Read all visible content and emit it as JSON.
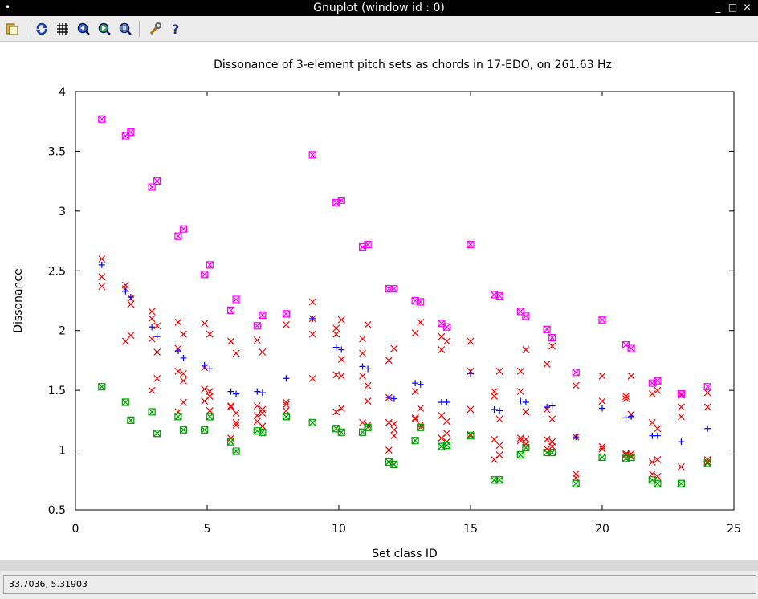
{
  "window": {
    "title": "Gnuplot (window id : 0)",
    "controls": [
      "minimize-icon",
      "maximize-icon",
      "close-icon"
    ]
  },
  "toolbar": {
    "buttons": [
      "copy-to-clipboard-icon",
      "replot-icon",
      "grid-icon",
      "zoom-previous-icon",
      "zoom-next-icon",
      "unzoom-icon",
      "settings-wrench-icon",
      "help-icon"
    ]
  },
  "status": {
    "coords": "33.7036,  5.31903"
  },
  "chart_data": {
    "type": "scatter",
    "title": "Dissonance of 3-element pitch sets as chords in 17-EDO, on 261.63 Hz",
    "xlabel": "Set class ID",
    "ylabel": "Dissonance",
    "xlim": [
      0,
      25
    ],
    "ylim": [
      0.5,
      4
    ],
    "xticks": [
      0,
      5,
      10,
      15,
      20,
      25
    ],
    "yticks": [
      0.5,
      1,
      1.5,
      2,
      2.5,
      3,
      3.5,
      4
    ],
    "grid": false,
    "legend": "none",
    "colors": {
      "red": "#ff0000",
      "blue": "#0000ff",
      "green": "#00a000",
      "magenta": "#ff00ff"
    },
    "series": [
      {
        "marker": "x",
        "color": "#ff0000",
        "points": [
          [
            1,
            2.6
          ],
          [
            1,
            2.45
          ],
          [
            1,
            2.37
          ],
          [
            1.9,
            2.38
          ],
          [
            1.9,
            2.35
          ],
          [
            1.9,
            1.91
          ],
          [
            2.1,
            2.27
          ],
          [
            2.1,
            2.22
          ],
          [
            2.1,
            1.96
          ],
          [
            2.9,
            2.16
          ],
          [
            2.9,
            2.1
          ],
          [
            2.9,
            1.93
          ],
          [
            2.9,
            1.5
          ],
          [
            3.1,
            2.04
          ],
          [
            3.1,
            1.82
          ],
          [
            3.1,
            1.6
          ],
          [
            3.9,
            2.07
          ],
          [
            3.9,
            1.85
          ],
          [
            3.9,
            1.66
          ],
          [
            3.9,
            1.32
          ],
          [
            4.1,
            1.97
          ],
          [
            4.1,
            1.64
          ],
          [
            4.1,
            1.58
          ],
          [
            4.1,
            1.4
          ],
          [
            4.9,
            2.06
          ],
          [
            4.9,
            1.69
          ],
          [
            4.9,
            1.51
          ],
          [
            4.9,
            1.41
          ],
          [
            5.1,
            1.97
          ],
          [
            5.1,
            1.49
          ],
          [
            5.1,
            1.45
          ],
          [
            5.1,
            1.33
          ],
          [
            5.9,
            1.91
          ],
          [
            5.9,
            1.37
          ],
          [
            5.9,
            1.36
          ],
          [
            5.9,
            1.1
          ],
          [
            6.1,
            1.81
          ],
          [
            6.1,
            1.31
          ],
          [
            6.1,
            1.23
          ],
          [
            6.1,
            1.21
          ],
          [
            6.9,
            1.92
          ],
          [
            6.9,
            1.37
          ],
          [
            6.9,
            1.29
          ],
          [
            6.9,
            1.24
          ],
          [
            7.1,
            1.82
          ],
          [
            7.1,
            1.34
          ],
          [
            7.1,
            1.31
          ],
          [
            7.1,
            1.2
          ],
          [
            8,
            2.05
          ],
          [
            8,
            1.4
          ],
          [
            8,
            1.38
          ],
          [
            8,
            1.33
          ],
          [
            9,
            2.24
          ],
          [
            9,
            1.97
          ],
          [
            9,
            1.6
          ],
          [
            9,
            2.1
          ],
          [
            9.9,
            2.02
          ],
          [
            9.9,
            1.97
          ],
          [
            9.9,
            1.63
          ],
          [
            9.9,
            1.32
          ],
          [
            10.1,
            2.09
          ],
          [
            10.1,
            1.76
          ],
          [
            10.1,
            1.62
          ],
          [
            10.1,
            1.35
          ],
          [
            10.9,
            1.93
          ],
          [
            10.9,
            1.81
          ],
          [
            10.9,
            1.62
          ],
          [
            10.9,
            1.23
          ],
          [
            11.1,
            2.05
          ],
          [
            11.1,
            1.54
          ],
          [
            11.1,
            1.41
          ],
          [
            11.1,
            1.21
          ],
          [
            11.9,
            1.75
          ],
          [
            11.9,
            1.44
          ],
          [
            11.9,
            1.23
          ],
          [
            11.9,
            1.0
          ],
          [
            12.1,
            1.85
          ],
          [
            12.1,
            1.22
          ],
          [
            12.1,
            1.17
          ],
          [
            12.1,
            1.12
          ],
          [
            12.9,
            1.98
          ],
          [
            12.9,
            1.49
          ],
          [
            12.9,
            1.27
          ],
          [
            12.9,
            1.26
          ],
          [
            13.1,
            2.07
          ],
          [
            13.1,
            1.35
          ],
          [
            13.1,
            1.21
          ],
          [
            13.1,
            1.19
          ],
          [
            13.9,
            1.95
          ],
          [
            13.9,
            1.84
          ],
          [
            13.9,
            1.29
          ],
          [
            13.9,
            1.1
          ],
          [
            14.1,
            1.91
          ],
          [
            14.1,
            1.24
          ],
          [
            14.1,
            1.14
          ],
          [
            14.1,
            1.07
          ],
          [
            15,
            1.91
          ],
          [
            15,
            1.66
          ],
          [
            15,
            1.34
          ],
          [
            15,
            1.13
          ],
          [
            15.9,
            1.49
          ],
          [
            15.9,
            1.45
          ],
          [
            15.9,
            1.09
          ],
          [
            15.9,
            0.92
          ],
          [
            16.1,
            1.66
          ],
          [
            16.1,
            1.26
          ],
          [
            16.1,
            1.04
          ],
          [
            16.1,
            0.96
          ],
          [
            16.9,
            1.66
          ],
          [
            16.9,
            1.49
          ],
          [
            16.9,
            1.1
          ],
          [
            16.9,
            1.08
          ],
          [
            17.1,
            1.84
          ],
          [
            17.1,
            1.32
          ],
          [
            17.1,
            1.09
          ],
          [
            17.1,
            1.05
          ],
          [
            17.9,
            1.72
          ],
          [
            17.9,
            1.34
          ],
          [
            17.9,
            1.09
          ],
          [
            17.9,
            1.01
          ],
          [
            18.1,
            1.87
          ],
          [
            18.1,
            1.26
          ],
          [
            18.1,
            1.07
          ],
          [
            18.1,
            1.03
          ],
          [
            19,
            1.54
          ],
          [
            19,
            1.11
          ],
          [
            19,
            0.8
          ],
          [
            19,
            0.77
          ],
          [
            20,
            1.62
          ],
          [
            20,
            1.41
          ],
          [
            20,
            1.03
          ],
          [
            20,
            1.01
          ],
          [
            20.9,
            1.45
          ],
          [
            20.9,
            1.43
          ],
          [
            20.9,
            0.97
          ],
          [
            20.9,
            0.96
          ],
          [
            21.1,
            1.62
          ],
          [
            21.1,
            1.3
          ],
          [
            21.1,
            0.97
          ],
          [
            21.1,
            0.95
          ],
          [
            21.9,
            1.47
          ],
          [
            21.9,
            1.23
          ],
          [
            21.9,
            0.9
          ],
          [
            21.9,
            0.8
          ],
          [
            22.1,
            1.5
          ],
          [
            22.1,
            1.18
          ],
          [
            22.1,
            0.92
          ],
          [
            22.1,
            0.78
          ],
          [
            23,
            1.46
          ],
          [
            23,
            1.36
          ],
          [
            23,
            1.28
          ],
          [
            23,
            0.86
          ],
          [
            24,
            1.48
          ],
          [
            24,
            1.36
          ],
          [
            24,
            0.92
          ],
          [
            24,
            0.9
          ]
        ]
      },
      {
        "marker": "+",
        "color": "#0000ff",
        "points": [
          [
            1,
            2.55
          ],
          [
            1.9,
            2.33
          ],
          [
            2.1,
            2.28
          ],
          [
            2.9,
            2.03
          ],
          [
            3.1,
            1.95
          ],
          [
            3.9,
            1.83
          ],
          [
            4.1,
            1.77
          ],
          [
            4.9,
            1.71
          ],
          [
            5.1,
            1.68
          ],
          [
            5.9,
            1.49
          ],
          [
            6.1,
            1.47
          ],
          [
            6.9,
            1.49
          ],
          [
            7.1,
            1.48
          ],
          [
            8,
            1.6
          ],
          [
            9,
            2.1
          ],
          [
            9.9,
            1.86
          ],
          [
            10.1,
            1.84
          ],
          [
            10.9,
            1.7
          ],
          [
            11.1,
            1.68
          ],
          [
            11.9,
            1.44
          ],
          [
            12.1,
            1.43
          ],
          [
            12.9,
            1.56
          ],
          [
            13.1,
            1.55
          ],
          [
            13.9,
            1.4
          ],
          [
            14.1,
            1.4
          ],
          [
            15,
            1.64
          ],
          [
            15.9,
            1.34
          ],
          [
            16.1,
            1.33
          ],
          [
            16.9,
            1.41
          ],
          [
            17.1,
            1.4
          ],
          [
            17.9,
            1.36
          ],
          [
            18.1,
            1.37
          ],
          [
            19,
            1.11
          ],
          [
            20,
            1.35
          ],
          [
            20.9,
            1.27
          ],
          [
            21.1,
            1.28
          ],
          [
            21.9,
            1.12
          ],
          [
            22.1,
            1.12
          ],
          [
            23,
            1.07
          ],
          [
            24,
            1.18
          ]
        ]
      },
      {
        "marker": "boxed-x",
        "color": "#00a000",
        "points": [
          [
            1,
            1.53
          ],
          [
            1.9,
            1.4
          ],
          [
            2.1,
            1.25
          ],
          [
            2.9,
            1.32
          ],
          [
            3.1,
            1.14
          ],
          [
            3.9,
            1.28
          ],
          [
            4.1,
            1.17
          ],
          [
            4.9,
            1.17
          ],
          [
            5.1,
            1.28
          ],
          [
            5.9,
            1.07
          ],
          [
            6.1,
            0.99
          ],
          [
            6.9,
            1.16
          ],
          [
            7.1,
            1.15
          ],
          [
            8,
            1.28
          ],
          [
            9,
            1.23
          ],
          [
            9.9,
            1.18
          ],
          [
            10.1,
            1.15
          ],
          [
            10.9,
            1.15
          ],
          [
            11.1,
            1.19
          ],
          [
            11.9,
            0.9
          ],
          [
            12.1,
            0.88
          ],
          [
            12.9,
            1.08
          ],
          [
            13.1,
            1.19
          ],
          [
            13.9,
            1.03
          ],
          [
            14.1,
            1.04
          ],
          [
            15,
            1.12
          ],
          [
            15.9,
            0.75
          ],
          [
            16.1,
            0.75
          ],
          [
            16.9,
            0.96
          ],
          [
            17.1,
            1.02
          ],
          [
            17.9,
            0.98
          ],
          [
            18.1,
            0.98
          ],
          [
            19,
            0.72
          ],
          [
            20,
            0.94
          ],
          [
            20.9,
            0.93
          ],
          [
            21.1,
            0.94
          ],
          [
            21.9,
            0.75
          ],
          [
            22.1,
            0.72
          ],
          [
            23,
            0.72
          ],
          [
            24,
            0.89
          ]
        ]
      },
      {
        "marker": "boxed-x",
        "color": "#ff00ff",
        "points": [
          [
            1,
            3.77
          ],
          [
            1.9,
            3.63
          ],
          [
            2.1,
            3.66
          ],
          [
            2.9,
            3.2
          ],
          [
            3.1,
            3.25
          ],
          [
            3.9,
            2.79
          ],
          [
            4.1,
            2.85
          ],
          [
            4.9,
            2.47
          ],
          [
            5.1,
            2.55
          ],
          [
            5.9,
            2.17
          ],
          [
            6.1,
            2.26
          ],
          [
            6.9,
            2.04
          ],
          [
            7.1,
            2.13
          ],
          [
            8,
            2.14
          ],
          [
            9,
            3.47
          ],
          [
            9.9,
            3.07
          ],
          [
            10.1,
            3.09
          ],
          [
            10.9,
            2.7
          ],
          [
            11.1,
            2.72
          ],
          [
            11.9,
            2.35
          ],
          [
            12.1,
            2.35
          ],
          [
            12.9,
            2.25
          ],
          [
            13.1,
            2.24
          ],
          [
            13.9,
            2.06
          ],
          [
            14.1,
            2.03
          ],
          [
            15,
            2.72
          ],
          [
            15.9,
            2.3
          ],
          [
            16.1,
            2.29
          ],
          [
            16.9,
            2.16
          ],
          [
            17.1,
            2.12
          ],
          [
            17.9,
            2.01
          ],
          [
            18.1,
            1.94
          ],
          [
            19,
            1.65
          ],
          [
            20,
            2.09
          ],
          [
            20.9,
            1.88
          ],
          [
            21.1,
            1.85
          ],
          [
            21.9,
            1.56
          ],
          [
            22.1,
            1.58
          ],
          [
            23,
            1.47
          ],
          [
            24,
            1.53
          ]
        ]
      }
    ]
  }
}
